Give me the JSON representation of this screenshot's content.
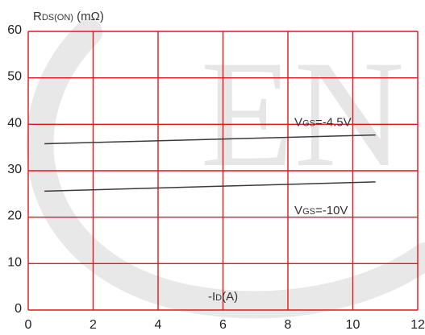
{
  "chart_data": {
    "type": "line",
    "ylabel": {
      "main": "R",
      "sub": "DS(ON)",
      "unit": " (mΩ)"
    },
    "xlabel": {
      "prefix": "-I",
      "sub": "D",
      "unit": "(A)"
    },
    "xlim": [
      0,
      12
    ],
    "ylim": [
      0,
      60
    ],
    "x_ticks": [
      0,
      2,
      4,
      6,
      8,
      10,
      12
    ],
    "y_ticks": [
      0,
      10,
      20,
      30,
      40,
      50,
      60
    ],
    "grid": true,
    "series": [
      {
        "name": "VGS=-4.5V",
        "x": [
          0.5,
          10.7
        ],
        "y": [
          35.8,
          37.7
        ]
      },
      {
        "name": "VGS=-10V",
        "x": [
          0.5,
          10.7
        ],
        "y": [
          25.6,
          27.6
        ]
      }
    ],
    "annotations": [
      {
        "main": "V",
        "sub": "GS",
        "rest": "=-4.5V",
        "x": 8.2,
        "y": 40.5
      },
      {
        "main": "V",
        "sub": "GS",
        "rest": "=-10V",
        "x": 8.2,
        "y": 21.5
      }
    ],
    "watermark": "EN"
  },
  "colors": {
    "grid": "#e8141a",
    "line": "#3a3a3a",
    "watermark": "#d6d6d6"
  }
}
